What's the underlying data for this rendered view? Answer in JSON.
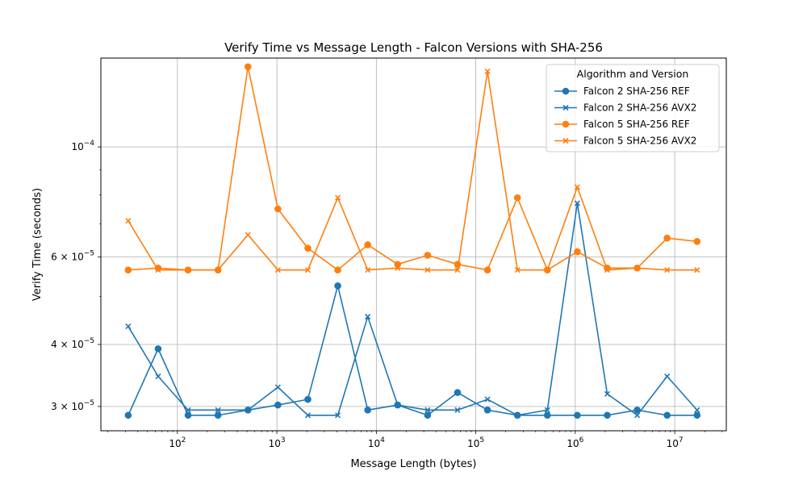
{
  "chart_data": {
    "type": "line",
    "title": "Verify Time vs Message Length - Falcon Versions with SHA-256",
    "xlabel": "Message Length (bytes)",
    "ylabel": "Verify Time (seconds)",
    "xscale": "log",
    "yscale": "log",
    "xlim": [
      17,
      33000000
    ],
    "ylim": [
      2.68e-05,
      0.000151
    ],
    "grid": true,
    "legend": {
      "title": "Algorithm and Version",
      "placement": "top-right"
    },
    "x_ticks": [
      {
        "value": 100,
        "base": "10",
        "exp": "2"
      },
      {
        "value": 1000,
        "base": "10",
        "exp": "3"
      },
      {
        "value": 10000,
        "base": "10",
        "exp": "4"
      },
      {
        "value": 100000,
        "base": "10",
        "exp": "5"
      },
      {
        "value": 1000000,
        "base": "10",
        "exp": "6"
      },
      {
        "value": 10000000,
        "base": "10",
        "exp": "7"
      }
    ],
    "y_ticks": [
      {
        "value": 0.0001,
        "prefix": "",
        "base": "10",
        "exp": "−4"
      },
      {
        "value": 6e-05,
        "prefix": "6 × ",
        "base": "10",
        "exp": "−5"
      },
      {
        "value": 4e-05,
        "prefix": "4 × ",
        "base": "10",
        "exp": "−5"
      },
      {
        "value": 3e-05,
        "prefix": "3 × ",
        "base": "10",
        "exp": "−5"
      }
    ],
    "y_minor_ticks": [
      5e-05,
      7e-05,
      8e-05,
      9e-05
    ],
    "x": [
      32,
      64,
      128,
      256,
      512,
      1024,
      2048,
      4096,
      8192,
      16384,
      32768,
      65536,
      131072,
      262144,
      524288,
      1048576,
      2097152,
      4194304,
      8388608,
      16777216
    ],
    "series": [
      {
        "name": "Falcon 2 SHA-256 REF",
        "color": "#1f77b4",
        "marker": "circle",
        "values": [
          2.88e-05,
          3.92e-05,
          2.88e-05,
          2.88e-05,
          2.95e-05,
          3.02e-05,
          3.1e-05,
          5.25e-05,
          2.95e-05,
          3.02e-05,
          2.88e-05,
          3.2e-05,
          2.95e-05,
          2.88e-05,
          2.88e-05,
          2.88e-05,
          2.88e-05,
          2.95e-05,
          2.88e-05,
          2.88e-05
        ]
      },
      {
        "name": "Falcon 2 SHA-256 AVX2",
        "color": "#1f77b4",
        "marker": "x",
        "values": [
          4.35e-05,
          3.45e-05,
          2.95e-05,
          2.95e-05,
          2.95e-05,
          3.28e-05,
          2.88e-05,
          2.88e-05,
          4.55e-05,
          3.02e-05,
          2.95e-05,
          2.95e-05,
          3.1e-05,
          2.88e-05,
          2.95e-05,
          7.7e-05,
          3.18e-05,
          2.88e-05,
          3.45e-05,
          2.95e-05
        ]
      },
      {
        "name": "Falcon 5 SHA-256 REF",
        "color": "#ff7f0e",
        "marker": "circle",
        "values": [
          5.65e-05,
          5.7e-05,
          5.65e-05,
          5.65e-05,
          0.000145,
          7.5e-05,
          6.25e-05,
          5.65e-05,
          6.35e-05,
          5.8e-05,
          6.05e-05,
          5.8e-05,
          5.65e-05,
          7.9e-05,
          5.65e-05,
          6.15e-05,
          5.7e-05,
          5.7e-05,
          6.55e-05,
          6.45e-05
        ]
      },
      {
        "name": "Falcon 5 SHA-256 AVX2",
        "color": "#ff7f0e",
        "marker": "x",
        "values": [
          7.1e-05,
          5.65e-05,
          5.65e-05,
          5.65e-05,
          6.65e-05,
          5.65e-05,
          5.65e-05,
          7.9e-05,
          5.65e-05,
          5.7e-05,
          5.65e-05,
          5.65e-05,
          0.000142,
          5.65e-05,
          5.65e-05,
          8.3e-05,
          5.65e-05,
          5.7e-05,
          5.65e-05,
          5.65e-05
        ]
      }
    ]
  }
}
